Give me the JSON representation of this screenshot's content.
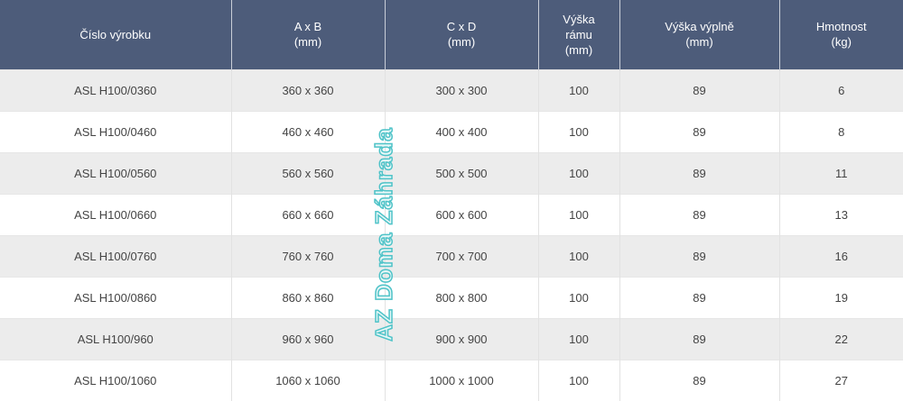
{
  "headers": [
    {
      "line1": "Číslo výrobku"
    },
    {
      "line1": "A x B",
      "line2": "(mm)"
    },
    {
      "line1": "C x D",
      "line2": "(mm)"
    },
    {
      "line1": "Výška",
      "line2": "rámu",
      "line3": "(mm)"
    },
    {
      "line1": "Výška výplně",
      "line2": "(mm)"
    },
    {
      "line1": "Hmotnost",
      "line2": "(kg)"
    }
  ],
  "rows": [
    [
      "ASL H100/0360",
      "360 x 360",
      "300 x 300",
      "100",
      "89",
      "6"
    ],
    [
      "ASL H100/0460",
      "460 x 460",
      "400 x 400",
      "100",
      "89",
      "8"
    ],
    [
      "ASL H100/0560",
      "560 x 560",
      "500 x 500",
      "100",
      "89",
      "11"
    ],
    [
      "ASL H100/0660",
      "660 x 660",
      "600 x 600",
      "100",
      "89",
      "13"
    ],
    [
      "ASL H100/0760",
      "760 x 760",
      "700 x 700",
      "100",
      "89",
      "16"
    ],
    [
      "ASL H100/0860",
      "860 x 860",
      "800 x 800",
      "100",
      "89",
      "19"
    ],
    [
      "ASL H100/960",
      "960 x 960",
      "900 x 900",
      "100",
      "89",
      "22"
    ],
    [
      "ASL H100/1060",
      "1060 x 1060",
      "1000 x 1000",
      "100",
      "89",
      "27"
    ]
  ],
  "watermark": "AZ Doma Záhrada",
  "colors": {
    "header_bg": "#4d5c7a",
    "stripe": "#ececec",
    "watermark": "#4fc3c8"
  }
}
